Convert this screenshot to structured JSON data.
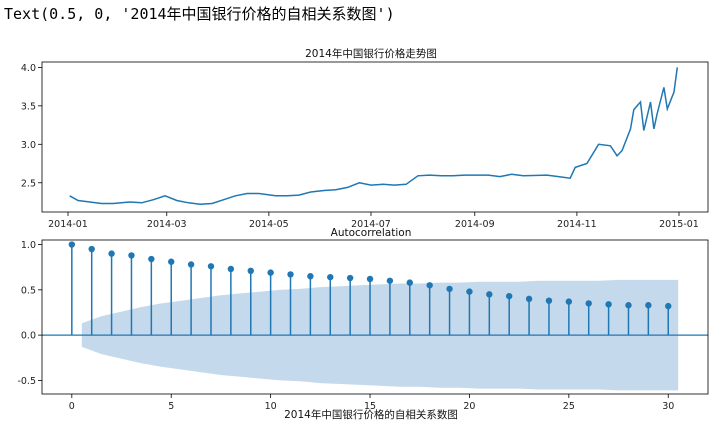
{
  "output_text": "Text(0.5, 0, '2014年中国银行价格的自相关系数图')",
  "chart_data": [
    {
      "type": "line",
      "title": "2014年中国银行价格走势图",
      "xlabel": "",
      "ylabel": "",
      "x_ticks": [
        "2014-01",
        "2014-03",
        "2014-05",
        "2014-07",
        "2014-09",
        "2014-11",
        "2015-01"
      ],
      "y_ticks": [
        "2.5",
        "3.0",
        "3.5",
        "4.0"
      ],
      "ylim": [
        2.12,
        4.07
      ],
      "line_color": "#1f77b4",
      "series": [
        {
          "x": [
            "2014-01-02",
            "2014-01-07",
            "2014-01-14",
            "2014-01-21",
            "2014-01-28",
            "2014-02-07",
            "2014-02-14",
            "2014-02-21",
            "2014-02-28",
            "2014-03-07",
            "2014-03-14",
            "2014-03-21",
            "2014-03-28",
            "2014-04-04",
            "2014-04-11",
            "2014-04-18",
            "2014-04-25",
            "2014-05-05",
            "2014-05-12",
            "2014-05-19",
            "2014-05-26",
            "2014-06-03",
            "2014-06-10",
            "2014-06-17",
            "2014-06-24",
            "2014-07-01",
            "2014-07-08",
            "2014-07-15",
            "2014-07-22",
            "2014-07-29",
            "2014-08-05",
            "2014-08-12",
            "2014-08-19",
            "2014-08-26",
            "2014-09-02",
            "2014-09-09",
            "2014-09-16",
            "2014-09-23",
            "2014-09-30",
            "2014-10-14",
            "2014-10-21",
            "2014-10-28",
            "2014-10-31",
            "2014-11-07",
            "2014-11-14",
            "2014-11-21",
            "2014-11-25",
            "2014-11-28",
            "2014-12-03",
            "2014-12-05",
            "2014-12-09",
            "2014-12-11",
            "2014-12-15",
            "2014-12-17",
            "2014-12-19",
            "2014-12-23",
            "2014-12-25",
            "2014-12-29",
            "2014-12-31"
          ],
          "y": [
            2.33,
            2.27,
            2.25,
            2.23,
            2.23,
            2.25,
            2.24,
            2.28,
            2.33,
            2.27,
            2.24,
            2.22,
            2.23,
            2.28,
            2.33,
            2.36,
            2.36,
            2.33,
            2.33,
            2.34,
            2.38,
            2.4,
            2.41,
            2.44,
            2.5,
            2.47,
            2.48,
            2.47,
            2.48,
            2.59,
            2.6,
            2.59,
            2.59,
            2.6,
            2.6,
            2.6,
            2.58,
            2.61,
            2.59,
            2.6,
            2.58,
            2.56,
            2.7,
            2.75,
            3.0,
            2.98,
            2.85,
            2.92,
            3.2,
            3.45,
            3.55,
            3.18,
            3.55,
            3.2,
            3.4,
            3.74,
            3.46,
            3.68,
            4.0
          ]
        }
      ]
    },
    {
      "type": "scatter",
      "title": "Autocorrelation",
      "xlabel": "2014年中国银行价格的自相关系数图",
      "ylabel": "",
      "x_ticks": [
        "0",
        "5",
        "10",
        "15",
        "20",
        "25",
        "30"
      ],
      "y_ticks": [
        "-0.5",
        "0.0",
        "0.5",
        "1.0"
      ],
      "xlim": [
        -1.5,
        32
      ],
      "ylim": [
        -0.65,
        1.05
      ],
      "stem_color": "#1f77b4",
      "band_color": "#c5d9ec",
      "lags": [
        0,
        1,
        2,
        3,
        4,
        5,
        6,
        7,
        8,
        9,
        10,
        11,
        12,
        13,
        14,
        15,
        16,
        17,
        18,
        19,
        20,
        21,
        22,
        23,
        24,
        25,
        26,
        27,
        28,
        29,
        30
      ],
      "acf": [
        1.0,
        0.95,
        0.9,
        0.88,
        0.84,
        0.81,
        0.78,
        0.76,
        0.73,
        0.71,
        0.69,
        0.67,
        0.65,
        0.64,
        0.63,
        0.62,
        0.6,
        0.58,
        0.55,
        0.51,
        0.48,
        0.45,
        0.43,
        0.4,
        0.38,
        0.37,
        0.35,
        0.34,
        0.33,
        0.33,
        0.32
      ],
      "conf_upper": [
        0.0,
        0.13,
        0.21,
        0.26,
        0.31,
        0.35,
        0.38,
        0.41,
        0.44,
        0.46,
        0.48,
        0.5,
        0.51,
        0.53,
        0.54,
        0.55,
        0.56,
        0.57,
        0.57,
        0.58,
        0.58,
        0.59,
        0.59,
        0.59,
        0.6,
        0.6,
        0.6,
        0.6,
        0.61,
        0.61,
        0.61
      ]
    }
  ]
}
